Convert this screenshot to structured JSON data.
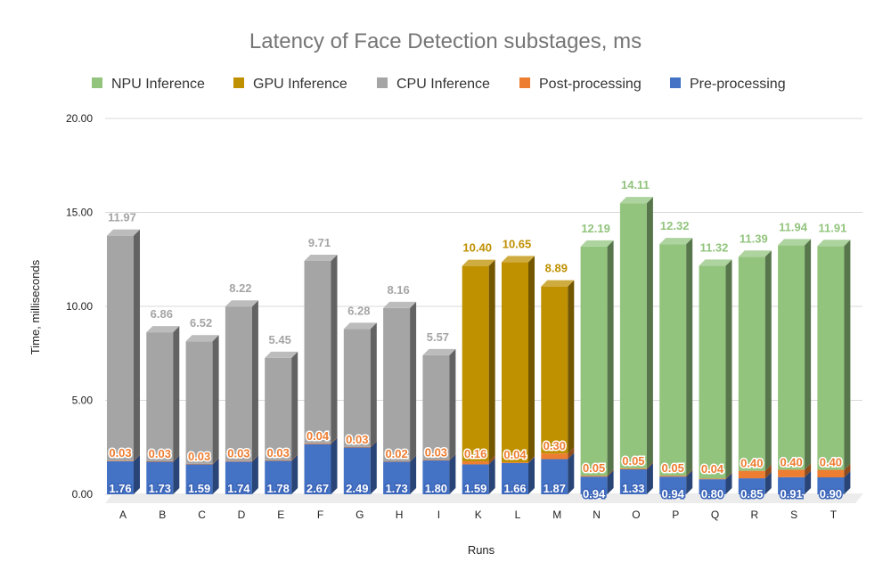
{
  "chart_data": {
    "type": "bar",
    "stacked": true,
    "style": "3d",
    "title": "Latency of Face Detection substages, ms",
    "xlabel": "Runs",
    "ylabel": "Time, milliseconds",
    "ylim": [
      0,
      20
    ],
    "yticks": [
      "0.00",
      "5.00",
      "10.00",
      "15.00",
      "20.00"
    ],
    "grid": true,
    "legend_position": "top",
    "categories": [
      "A",
      "B",
      "C",
      "D",
      "E",
      "F",
      "G",
      "H",
      "I",
      "K",
      "L",
      "M",
      "N",
      "O",
      "P",
      "Q",
      "R",
      "S",
      "T"
    ],
    "legend": [
      "NPU Inference",
      "GPU Inference",
      "CPU Inference",
      "Post-processing",
      "Pre-processing"
    ],
    "series": [
      {
        "name": "Pre-processing",
        "color": "#4472c4",
        "values": [
          1.76,
          1.73,
          1.59,
          1.74,
          1.78,
          2.67,
          2.49,
          1.73,
          1.8,
          1.59,
          1.66,
          1.87,
          0.94,
          1.33,
          0.94,
          0.8,
          0.85,
          0.91,
          0.9
        ]
      },
      {
        "name": "Post-processing",
        "color": "#ed7d31",
        "values": [
          0.03,
          0.03,
          0.03,
          0.03,
          0.03,
          0.04,
          0.03,
          0.02,
          0.03,
          0.16,
          0.04,
          0.3,
          0.05,
          0.05,
          0.05,
          0.04,
          0.4,
          0.4,
          0.4
        ]
      },
      {
        "name": "CPU Inference",
        "color": "#a5a5a5",
        "values": [
          11.97,
          6.86,
          6.52,
          8.22,
          5.45,
          9.71,
          6.28,
          8.16,
          5.57,
          null,
          null,
          null,
          null,
          null,
          null,
          null,
          null,
          null,
          null
        ]
      },
      {
        "name": "GPU Inference",
        "color": "#bf9000",
        "values": [
          null,
          null,
          null,
          null,
          null,
          null,
          null,
          null,
          null,
          10.4,
          10.65,
          8.89,
          null,
          null,
          null,
          null,
          null,
          null,
          null
        ]
      },
      {
        "name": "NPU Inference",
        "color": "#92c47d",
        "values": [
          null,
          null,
          null,
          null,
          null,
          null,
          null,
          null,
          null,
          null,
          null,
          null,
          12.19,
          14.11,
          12.32,
          11.32,
          11.39,
          11.94,
          11.91
        ]
      }
    ]
  }
}
